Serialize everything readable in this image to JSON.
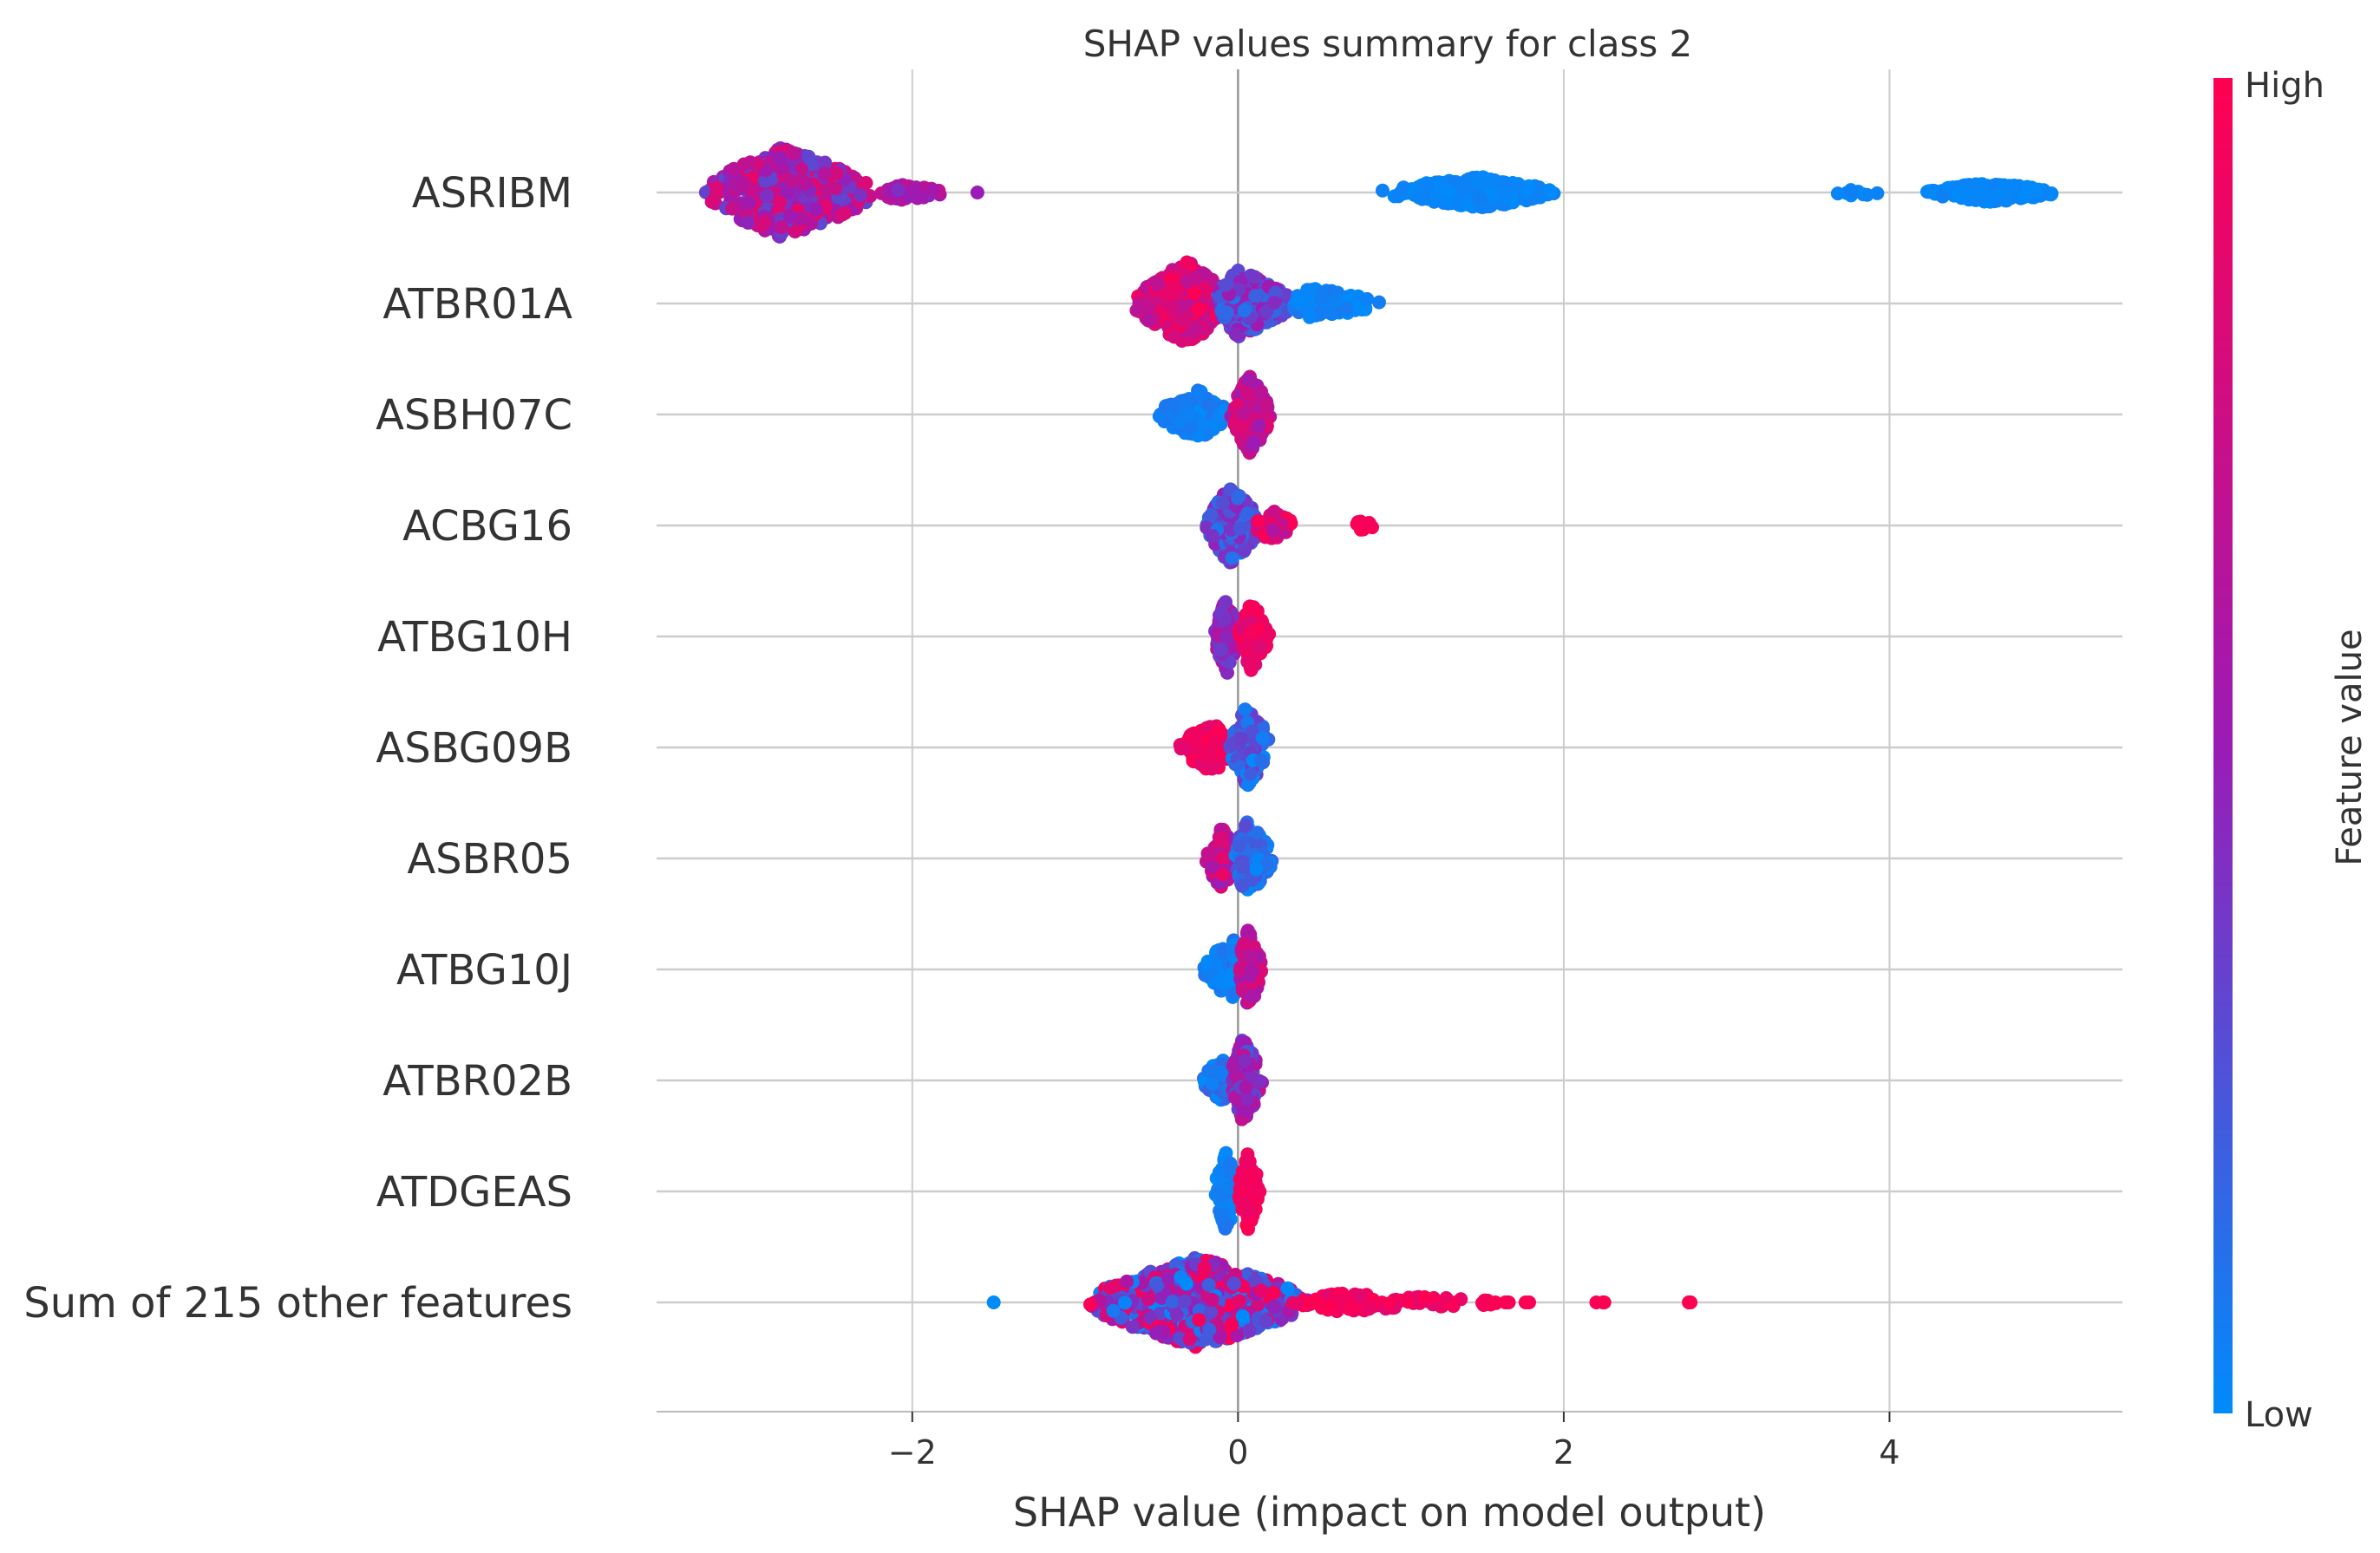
{
  "chart_data": {
    "type": "scatter",
    "subtype": "beeswarm",
    "title": "SHAP values summary for class 2",
    "xlabel": "SHAP value (impact on model output)",
    "ylabel": "",
    "xlim": [
      -3.57,
      5.43
    ],
    "xticks": [
      -2,
      0,
      2,
      4
    ],
    "xtick_labels": [
      "−2",
      "0",
      "2",
      "4"
    ],
    "grid": "vertical",
    "zero_line": 0,
    "colorbar": {
      "title": "Feature value",
      "high_label": "High",
      "low_label": "Low",
      "low_color": "#008bfb",
      "mid_color": "#9b1bb6",
      "high_color": "#ff0052"
    },
    "features": [
      {
        "name": "ASRIBM",
        "clusters": [
          {
            "lo": -3.3,
            "hi": -2.2,
            "peak": -2.8,
            "n": 500,
            "h": 1.0,
            "color": [
              0.3,
              0.9
            ]
          },
          {
            "lo": -2.2,
            "hi": -1.75,
            "peak": -2.1,
            "n": 60,
            "h": 0.18,
            "color": [
              0.4,
              0.7
            ]
          },
          {
            "lo": -1.6,
            "hi": -1.6,
            "peak": -1.6,
            "n": 1,
            "h": 0.0,
            "color": [
              0.5,
              0.5
            ]
          },
          {
            "lo": 0.85,
            "hi": 1.95,
            "peak": 1.5,
            "n": 300,
            "h": 0.35,
            "color": [
              0.0,
              0.05
            ]
          },
          {
            "lo": 3.65,
            "hi": 3.95,
            "peak": 3.8,
            "n": 10,
            "h": 0.08,
            "color": [
              0.0,
              0.05
            ]
          },
          {
            "lo": 4.2,
            "hi": 5.05,
            "peak": 4.6,
            "n": 200,
            "h": 0.22,
            "color": [
              0.0,
              0.05
            ]
          }
        ]
      },
      {
        "name": "ATBR01A",
        "clusters": [
          {
            "lo": -0.65,
            "hi": -0.05,
            "peak": -0.3,
            "n": 320,
            "h": 0.95,
            "color": [
              0.6,
              1.0
            ]
          },
          {
            "lo": -0.15,
            "hi": 0.35,
            "peak": 0.0,
            "n": 250,
            "h": 0.75,
            "color": [
              0.1,
              0.55
            ]
          },
          {
            "lo": 0.3,
            "hi": 0.9,
            "peak": 0.45,
            "n": 110,
            "h": 0.35,
            "color": [
              0.0,
              0.1
            ]
          }
        ]
      },
      {
        "name": "ASBH07C",
        "clusters": [
          {
            "lo": -0.5,
            "hi": -0.05,
            "peak": -0.25,
            "n": 150,
            "h": 0.55,
            "color": [
              0.0,
              0.1
            ]
          },
          {
            "lo": -0.05,
            "hi": 0.2,
            "peak": 0.08,
            "n": 170,
            "h": 0.9,
            "color": [
              0.5,
              0.85
            ]
          }
        ]
      },
      {
        "name": "ACBG16",
        "clusters": [
          {
            "lo": -0.2,
            "hi": 0.15,
            "peak": -0.05,
            "n": 230,
            "h": 0.85,
            "color": [
              0.1,
              0.5
            ]
          },
          {
            "lo": 0.1,
            "hi": 0.35,
            "peak": 0.2,
            "n": 60,
            "h": 0.35,
            "color": [
              0.6,
              1.0
            ]
          },
          {
            "lo": 0.68,
            "hi": 0.85,
            "peak": 0.76,
            "n": 12,
            "h": 0.1,
            "color": [
              0.95,
              1.0
            ]
          }
        ]
      },
      {
        "name": "ATBG10H",
        "clusters": [
          {
            "lo": -0.15,
            "hi": 0.0,
            "peak": -0.07,
            "n": 130,
            "h": 0.85,
            "color": [
              0.3,
              0.7
            ]
          },
          {
            "lo": 0.0,
            "hi": 0.2,
            "peak": 0.08,
            "n": 110,
            "h": 0.75,
            "color": [
              0.8,
              1.0
            ]
          }
        ]
      },
      {
        "name": "ASBG09B",
        "clusters": [
          {
            "lo": -0.38,
            "hi": -0.02,
            "peak": -0.15,
            "n": 160,
            "h": 0.55,
            "color": [
              0.85,
              1.0
            ]
          },
          {
            "lo": -0.05,
            "hi": 0.22,
            "peak": 0.05,
            "n": 120,
            "h": 0.9,
            "color": [
              0.0,
              0.4
            ]
          }
        ]
      },
      {
        "name": "ASBR05",
        "clusters": [
          {
            "lo": -0.2,
            "hi": 0.0,
            "peak": -0.1,
            "n": 120,
            "h": 0.7,
            "color": [
              0.4,
              0.9
            ]
          },
          {
            "lo": -0.02,
            "hi": 0.22,
            "peak": 0.05,
            "n": 130,
            "h": 0.85,
            "color": [
              0.0,
              0.3
            ]
          }
        ]
      },
      {
        "name": "ATBG10J",
        "clusters": [
          {
            "lo": -0.22,
            "hi": -0.02,
            "peak": -0.1,
            "n": 80,
            "h": 0.5,
            "color": [
              0.0,
              0.1
            ]
          },
          {
            "lo": -0.05,
            "hi": 0.0,
            "peak": -0.03,
            "n": 40,
            "h": 0.7,
            "color": [
              0.0,
              0.15
            ]
          },
          {
            "lo": 0.0,
            "hi": 0.15,
            "peak": 0.06,
            "n": 120,
            "h": 0.9,
            "color": [
              0.5,
              0.85
            ]
          }
        ]
      },
      {
        "name": "ATBR02B",
        "clusters": [
          {
            "lo": -0.22,
            "hi": -0.02,
            "peak": -0.1,
            "n": 80,
            "h": 0.5,
            "color": [
              0.0,
              0.2
            ]
          },
          {
            "lo": -0.05,
            "hi": 0.15,
            "peak": 0.03,
            "n": 150,
            "h": 0.95,
            "color": [
              0.2,
              0.7
            ]
          }
        ]
      },
      {
        "name": "ATDGEAS",
        "clusters": [
          {
            "lo": -0.15,
            "hi": 0.0,
            "peak": -0.07,
            "n": 110,
            "h": 0.9,
            "color": [
              0.0,
              0.1
            ]
          },
          {
            "lo": 0.0,
            "hi": 0.14,
            "peak": 0.06,
            "n": 110,
            "h": 0.85,
            "color": [
              0.9,
              1.0
            ]
          }
        ]
      },
      {
        "name": "Sum of 215 other features",
        "clusters": [
          {
            "lo": -1.5,
            "hi": -1.5,
            "peak": -1.5,
            "n": 1,
            "h": 0.0,
            "color": [
              0.0,
              0.0
            ]
          },
          {
            "lo": -0.95,
            "hi": 0.45,
            "peak": -0.25,
            "n": 750,
            "h": 1.0,
            "color": [
              0.0,
              1.0
            ]
          },
          {
            "lo": 0.3,
            "hi": 1.7,
            "peak": 0.6,
            "n": 110,
            "h": 0.2,
            "color": [
              0.85,
              1.0
            ]
          },
          {
            "lo": 1.5,
            "hi": 1.9,
            "peak": 1.7,
            "n": 6,
            "h": 0.0,
            "color": [
              0.95,
              1.0
            ]
          },
          {
            "lo": 2.15,
            "hi": 2.35,
            "peak": 2.25,
            "n": 3,
            "h": 0.0,
            "color": [
              0.95,
              1.0
            ]
          },
          {
            "lo": 2.7,
            "hi": 2.9,
            "peak": 2.8,
            "n": 4,
            "h": 0.0,
            "color": [
              0.95,
              1.0
            ]
          }
        ]
      }
    ]
  }
}
